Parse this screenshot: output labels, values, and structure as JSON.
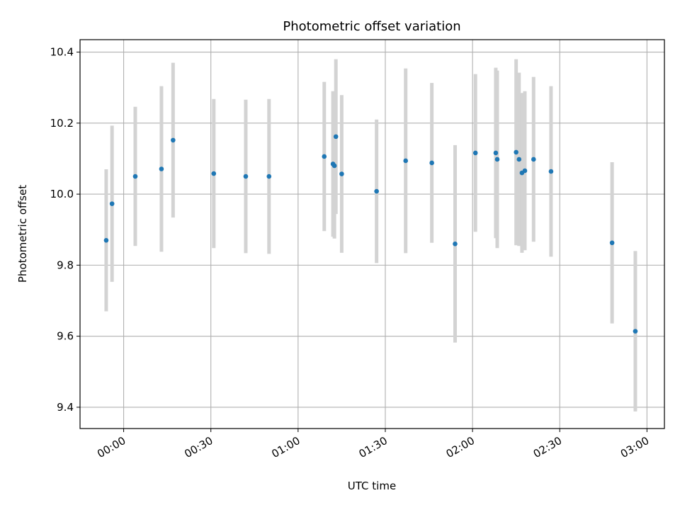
{
  "chart_data": {
    "type": "scatter",
    "title": "Photometric offset variation",
    "xlabel": "UTC time",
    "ylabel": "Photometric offset",
    "x_axis_type": "time",
    "xlim": [
      "23:45",
      "03:06"
    ],
    "ylim": [
      9.34,
      10.435
    ],
    "x_ticks": [
      "00:00",
      "00:30",
      "01:00",
      "01:30",
      "02:00",
      "02:30",
      "03:00"
    ],
    "y_ticks": [
      9.4,
      9.6,
      9.8,
      10.0,
      10.2,
      10.4
    ],
    "y_tick_labels": [
      "9.4",
      "9.6",
      "9.8",
      "10.0",
      "10.2",
      "10.4"
    ],
    "grid": true,
    "point_color": "#1f77b4",
    "errorbar_color": "#d3d3d3",
    "points": [
      {
        "t": "23:54",
        "y": 9.87,
        "err": 0.2
      },
      {
        "t": "23:56",
        "y": 9.973,
        "err": 0.22
      },
      {
        "t": "00:04",
        "y": 10.05,
        "err": 0.196
      },
      {
        "t": "00:13",
        "y": 10.071,
        "err": 0.233
      },
      {
        "t": "00:17",
        "y": 10.152,
        "err": 0.218
      },
      {
        "t": "00:31",
        "y": 10.058,
        "err": 0.21
      },
      {
        "t": "00:42",
        "y": 10.05,
        "err": 0.216
      },
      {
        "t": "00:50",
        "y": 10.05,
        "err": 0.218
      },
      {
        "t": "01:09",
        "y": 10.106,
        "err": 0.21
      },
      {
        "t": "01:12",
        "y": 10.085,
        "err": 0.205
      },
      {
        "t": "01:12:30",
        "y": 10.08,
        "err": 0.205
      },
      {
        "t": "01:13",
        "y": 10.162,
        "err": 0.218
      },
      {
        "t": "01:15",
        "y": 10.057,
        "err": 0.222
      },
      {
        "t": "01:27",
        "y": 10.008,
        "err": 0.202
      },
      {
        "t": "01:37",
        "y": 10.094,
        "err": 0.26
      },
      {
        "t": "01:46",
        "y": 10.088,
        "err": 0.225
      },
      {
        "t": "01:54",
        "y": 9.86,
        "err": 0.278
      },
      {
        "t": "02:01",
        "y": 10.116,
        "err": 0.222
      },
      {
        "t": "02:08",
        "y": 10.116,
        "err": 0.24
      },
      {
        "t": "02:08:30",
        "y": 10.098,
        "err": 0.25
      },
      {
        "t": "02:15",
        "y": 10.118,
        "err": 0.262
      },
      {
        "t": "02:16",
        "y": 10.098,
        "err": 0.244
      },
      {
        "t": "02:17",
        "y": 10.06,
        "err": 0.225
      },
      {
        "t": "02:18",
        "y": 10.066,
        "err": 0.224
      },
      {
        "t": "02:21",
        "y": 10.098,
        "err": 0.232
      },
      {
        "t": "02:27",
        "y": 10.064,
        "err": 0.24
      },
      {
        "t": "02:48",
        "y": 9.863,
        "err": 0.227
      },
      {
        "t": "02:56",
        "y": 9.614,
        "err": 0.226
      }
    ]
  }
}
